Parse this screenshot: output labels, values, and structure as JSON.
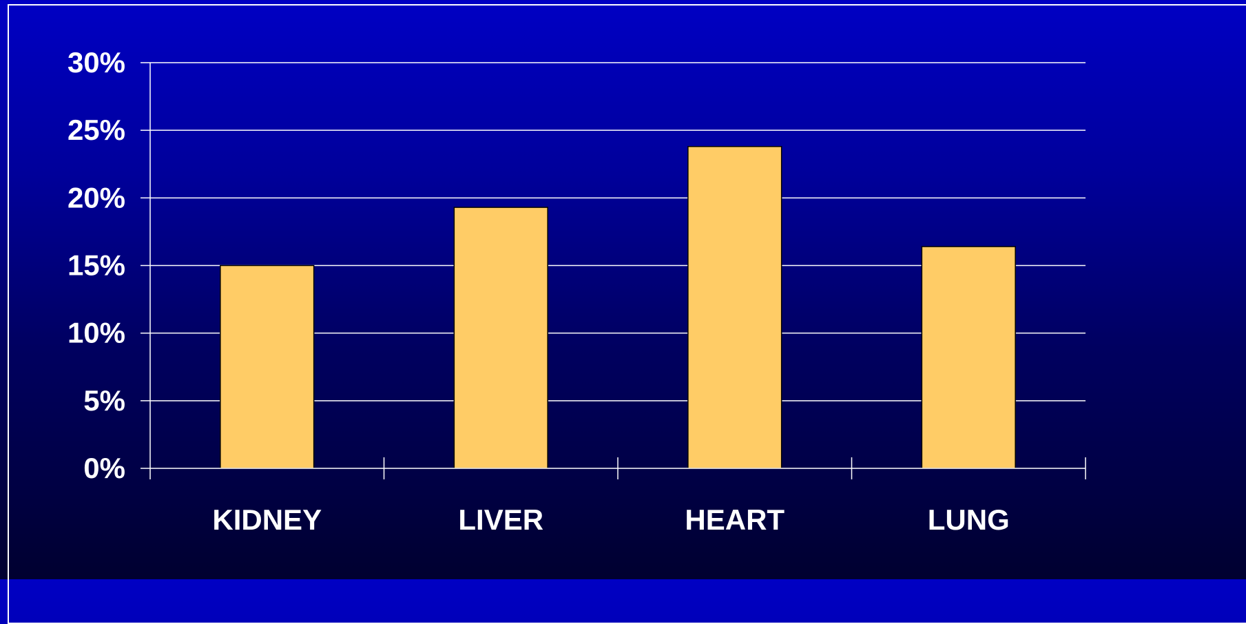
{
  "chart_data": {
    "type": "bar",
    "categories": [
      "KIDNEY",
      "LIVER",
      "HEART",
      "LUNG"
    ],
    "values": [
      15,
      19.3,
      23.8,
      16.4
    ],
    "ylim": [
      0,
      30
    ],
    "y_ticks": [
      "0%",
      "5%",
      "10%",
      "15%",
      "20%",
      "25%",
      "30%"
    ],
    "y_tick_values": [
      0,
      5,
      10,
      15,
      20,
      25,
      30
    ],
    "title": "",
    "xlabel": "",
    "ylabel": "",
    "grid": true,
    "legend": "none",
    "bar_color": "#ffcc66",
    "background_top": "#0000c4",
    "background_bottom": "#000030",
    "axis_color": "#ffffff"
  }
}
